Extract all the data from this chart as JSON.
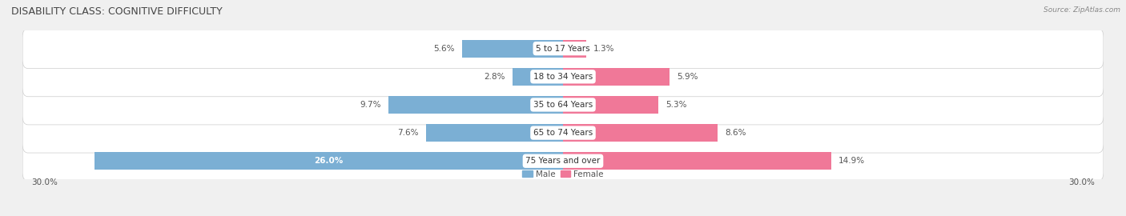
{
  "title": "DISABILITY CLASS: COGNITIVE DIFFICULTY",
  "source": "Source: ZipAtlas.com",
  "categories": [
    "5 to 17 Years",
    "18 to 34 Years",
    "35 to 64 Years",
    "65 to 74 Years",
    "75 Years and over"
  ],
  "male_values": [
    5.6,
    2.8,
    9.7,
    7.6,
    26.0
  ],
  "female_values": [
    1.3,
    5.9,
    5.3,
    8.6,
    14.9
  ],
  "xlim": 30.0,
  "male_color": "#7bafd4",
  "female_color": "#f07898",
  "row_bg_color": "#e8e8e8",
  "row_inner_color": "#f2f2f2",
  "label_color": "#555555",
  "legend_male": "Male",
  "legend_female": "Female",
  "axis_label_left": "30.0%",
  "axis_label_right": "30.0%",
  "bar_height": 0.62,
  "title_fontsize": 9,
  "label_fontsize": 7.5,
  "category_fontsize": 7.5
}
